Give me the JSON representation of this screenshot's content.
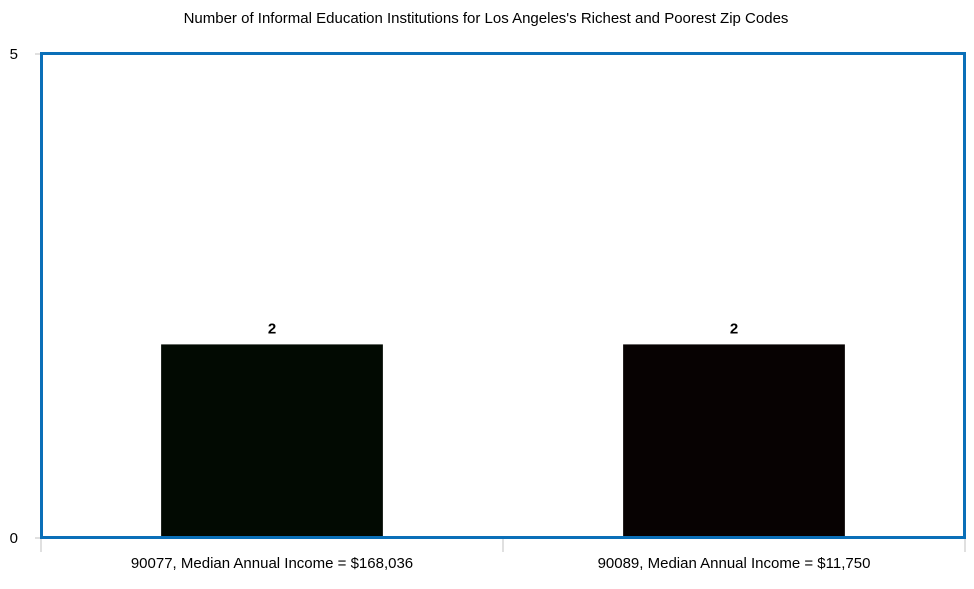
{
  "chart_data": {
    "type": "bar",
    "title": "Number of Informal Education Institutions for Los Angeles's Richest and Poorest Zip Codes",
    "categories": [
      "90077, Median Annual Income = $168,036",
      "90089, Median Annual Income = $11,750"
    ],
    "values": [
      2,
      2
    ],
    "data_labels": [
      "2",
      "2"
    ],
    "bar_colors": [
      "#020a02",
      "#070202"
    ],
    "yticks": [
      0,
      5
    ],
    "ylim": [
      0,
      5
    ],
    "xlabel": "",
    "ylabel": "",
    "grid": false,
    "legend": "none"
  },
  "colors": {
    "plot_border": "#0a6fb8",
    "axis": "#c0c0c0"
  }
}
